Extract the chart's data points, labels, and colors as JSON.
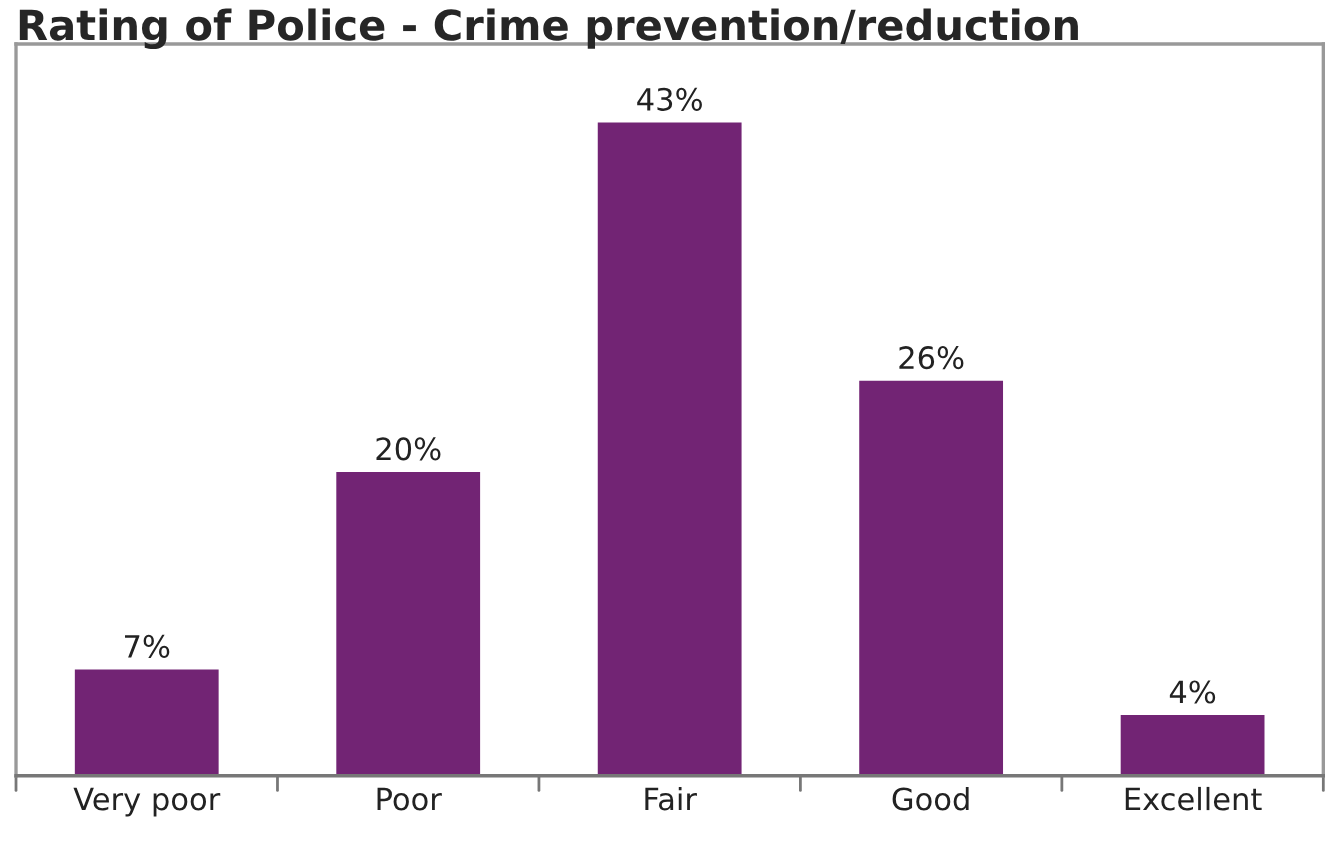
{
  "chart_data": {
    "type": "bar",
    "title": "Rating of Police - Crime prevention/reduction",
    "categories": [
      "Very poor",
      "Poor",
      "Fair",
      "Good",
      "Excellent"
    ],
    "values": [
      7,
      20,
      43,
      26,
      4
    ],
    "value_labels": [
      "7%",
      "20%",
      "43%",
      "26%",
      "4%"
    ],
    "color": "#722474",
    "grid": false,
    "legend": false
  }
}
